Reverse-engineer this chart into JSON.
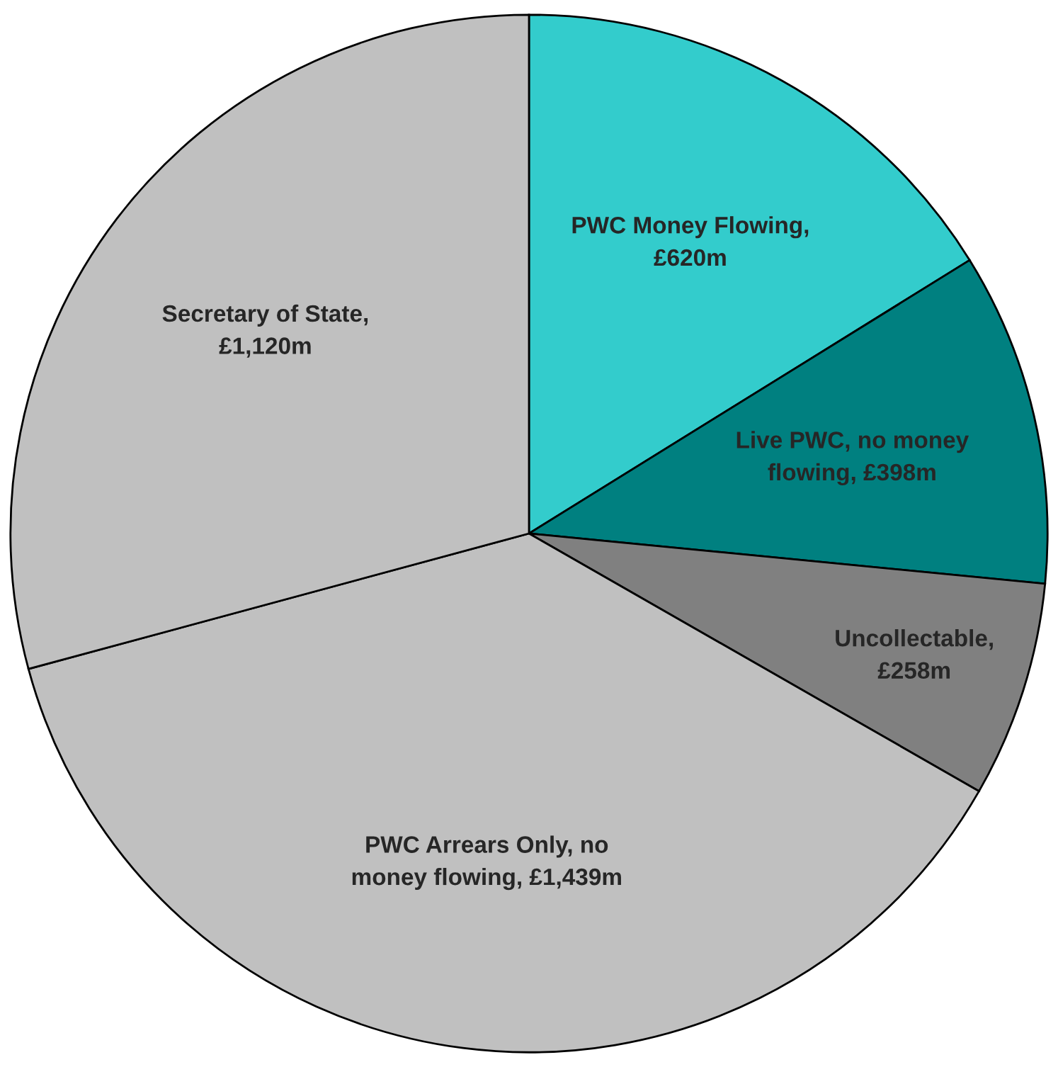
{
  "chart_data": {
    "type": "pie",
    "categories": [
      "PWC Money Flowing,\n£620m",
      "Live PWC, no money\nflowing, £398m",
      "Uncollectable,\n£258m",
      "PWC Arrears Only, no\nmoney flowing, £1,439m",
      "Secretary of State,\n£1,120m"
    ],
    "values": [
      620,
      398,
      258,
      1439,
      1120
    ],
    "colors": [
      "#33cccc",
      "#008080",
      "#808080",
      "#c0c0c0",
      "#c0c0c0"
    ]
  }
}
